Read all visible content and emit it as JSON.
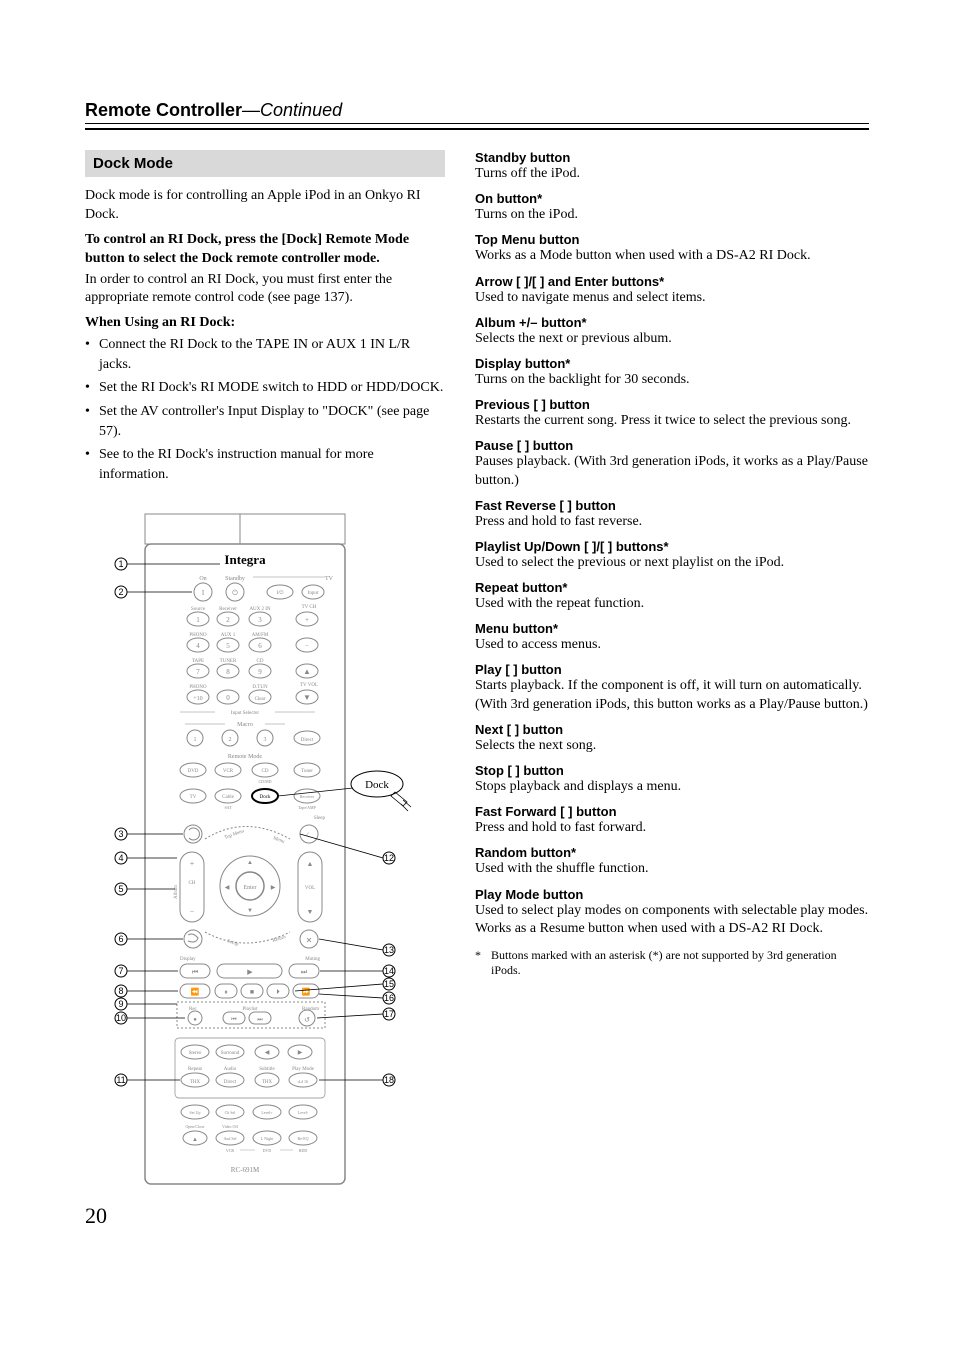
{
  "header": {
    "title_bold": "Remote Controller",
    "title_italic": "—Continued"
  },
  "section": {
    "heading": "Dock Mode",
    "intro": "Dock mode is for controlling an Apple iPod in an Onkyo RI Dock.",
    "bold_instruction": "To control an RI Dock, press the [Dock] Remote Mode button to select the Dock remote controller mode.",
    "code_note": "In order to control an RI Dock, you must first enter the appropriate remote control code (see page 137).",
    "when_using_heading": "When Using an RI Dock:",
    "bullets": [
      "Connect the RI Dock to the TAPE IN or AUX 1 IN L/R jacks.",
      "Set the RI Dock's RI MODE switch to HDD or HDD/DOCK.",
      "Set the AV controller's Input Display to \"DOCK\" (see page 57).",
      "See to the RI Dock's instruction manual for more information."
    ]
  },
  "remote": {
    "brand": "Integra",
    "dock_label": "Dock",
    "model": "RC-691M",
    "callouts_left": [
      "1",
      "2",
      "3",
      "4",
      "5",
      "6",
      "7",
      "8",
      "9",
      "10",
      "11"
    ],
    "callouts_right": [
      "12",
      "13",
      "14",
      "15",
      "16",
      "17",
      "18"
    ],
    "button_labels": {
      "on": "On",
      "standby": "Standby",
      "tv": "TV",
      "iv": "I/V",
      "input": "Input",
      "source": "Source",
      "receiver": "Receiver",
      "aux2in": "AUX 2 IN",
      "tvch": "TV CH",
      "phone": "PHONO",
      "aux1": "AUX 1",
      "am/fm": "AM/FM",
      "tape": "TAPE",
      "tuner": "TUNER",
      "cd": "CD",
      "phono": "PHONO",
      "dtun": "D.TUN",
      "tvvol": "TV VOL",
      "x10": "+ 10",
      "clear": "Clear",
      "mute": "Muting",
      "macro": "Macro",
      "direct": "Direct",
      "inputselector": "Input Selector",
      "remotemode": "Remote Mode",
      "dvd": "DVD",
      "vcr": "VCR",
      "cdmd": "CD",
      "tuner2": "Tuner",
      "tv2": "TV",
      "cable": "Cable",
      "dock": "Dock",
      "receiver2": "Receiver",
      "sat": "SAT",
      "tape2": "Tape/AMP",
      "sleep": "Sleep",
      "topmenu": "Top Menu",
      "menu": "Menu",
      "ch": "CH",
      "enter": "Enter",
      "vol": "VOL",
      "album": "Album",
      "setup": "Setup",
      "return": "Return",
      "display": "Display",
      "muting": "Muting",
      "rec": "Rec",
      "playlist": "Playlist",
      "random": "Random",
      "stereo": "Stereo",
      "surround": "Surround",
      "repeat": "Repeat",
      "audio": "Audio",
      "subtitle": "Subtitle",
      "playmode": "Play Mode",
      "thx": "THX",
      "direct2": "Direct",
      "date": "d.d 16",
      "setup2": "Set Up",
      "chsel": "Ch Sel",
      "level": "Level+",
      "level-": "Level-",
      "openclose": "Open/Close",
      "videooff": "Video Off",
      "audsel": "Aud Sel",
      "lnight": "L Night",
      "reeg": "Re-EQ",
      "vcr2": "VCR",
      "dvd2": "DVD",
      "hdd": "HDD"
    }
  },
  "functions": [
    {
      "title": "Standby button",
      "desc": "Turns off the iPod."
    },
    {
      "title": "On button*",
      "desc": "Turns on the iPod."
    },
    {
      "title": "Top Menu button",
      "desc": "Works as a Mode button when used with a DS-A2 RI Dock."
    },
    {
      "title": "Arrow [   ]/[   ] and Enter buttons*",
      "desc": "Used to navigate menus and select items."
    },
    {
      "title": "Album +/– button*",
      "desc": "Selects the next or previous album."
    },
    {
      "title": "Display button*",
      "desc": "Turns on the backlight for 30 seconds."
    },
    {
      "title": "Previous [        ] button",
      "desc": "Restarts the current song. Press it twice to select the previous song."
    },
    {
      "title": "Pause [    ] button",
      "desc": "Pauses playback. (With 3rd generation iPods, it works as a Play/Pause button.)"
    },
    {
      "title": "Fast Reverse [        ] button",
      "desc": "Press and hold to fast reverse."
    },
    {
      "title": "Playlist Up/Down [      ]/[      ] buttons*",
      "desc": "Used to select the previous or next playlist on the iPod."
    },
    {
      "title": "Repeat button*",
      "desc": "Used with the repeat function."
    },
    {
      "title": "Menu button*",
      "desc": "Used to access menus."
    },
    {
      "title": "Play [      ] button",
      "desc": "Starts playback. If the component is off, it will turn on automatically. (With 3rd generation iPods, this button works as a Play/Pause button.)"
    },
    {
      "title": "Next [        ] button",
      "desc": "Selects the next song."
    },
    {
      "title": "Stop [   ] button",
      "desc": "Stops playback and displays a menu."
    },
    {
      "title": "Fast Forward [        ] button",
      "desc": "Press and hold to fast forward."
    },
    {
      "title": "Random button*",
      "desc": "Used with the shuffle function."
    },
    {
      "title": "Play Mode button",
      "desc": "Used to select play modes on components with selectable play modes. Works as a Resume button when used with a DS-A2 RI Dock."
    }
  ],
  "footnote": {
    "marker": "*",
    "text": "Buttons marked with an asterisk (*) are not supported by 3rd generation iPods."
  },
  "page_number": "20",
  "colors": {
    "heading_bg": "#d9d9d9",
    "text": "#000000",
    "remote_outline": "#808080",
    "remote_light": "#b0b0b0"
  }
}
